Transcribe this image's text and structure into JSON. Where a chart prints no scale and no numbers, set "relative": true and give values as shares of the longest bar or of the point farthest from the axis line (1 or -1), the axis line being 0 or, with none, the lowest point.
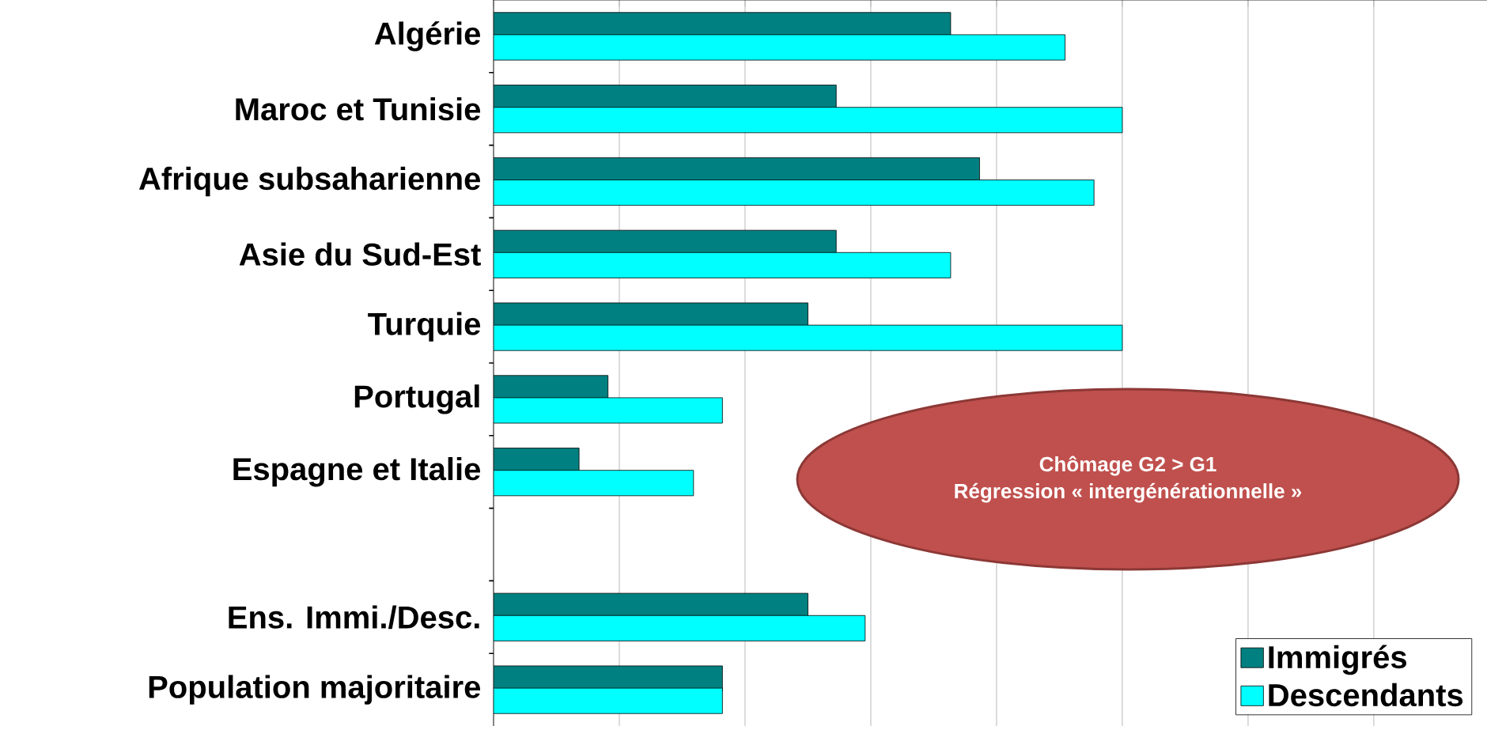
{
  "chart_data": {
    "type": "bar",
    "orientation": "horizontal",
    "relative": true,
    "tick_labels": "y",
    "grid": "x",
    "legend": "bottom right",
    "categories": [
      "Algérie",
      "Maroc et Tunisie",
      "Afrique subsaharienne",
      "Asie du Sud-Est",
      "Turquie",
      "Portugal",
      "Espagne et Italie",
      null,
      "Ens. Immi./Desc.",
      "Population  majoritaire"
    ],
    "series": [
      {
        "name": "Immigrés",
        "color": "#008080",
        "values": [
          0.727,
          0.545,
          0.773,
          0.545,
          0.5,
          0.182,
          0.136,
          null,
          0.5,
          0.364
        ]
      },
      {
        "name": "Descendants",
        "color": "#00ffff",
        "values": [
          0.909,
          1,
          0.955,
          0.727,
          1,
          0.364,
          0.318,
          null,
          0.591,
          0.364
        ]
      }
    ],
    "annotations": [
      "Chômage G2 > G1",
      "Régression « intergénérationnelle »"
    ]
  }
}
